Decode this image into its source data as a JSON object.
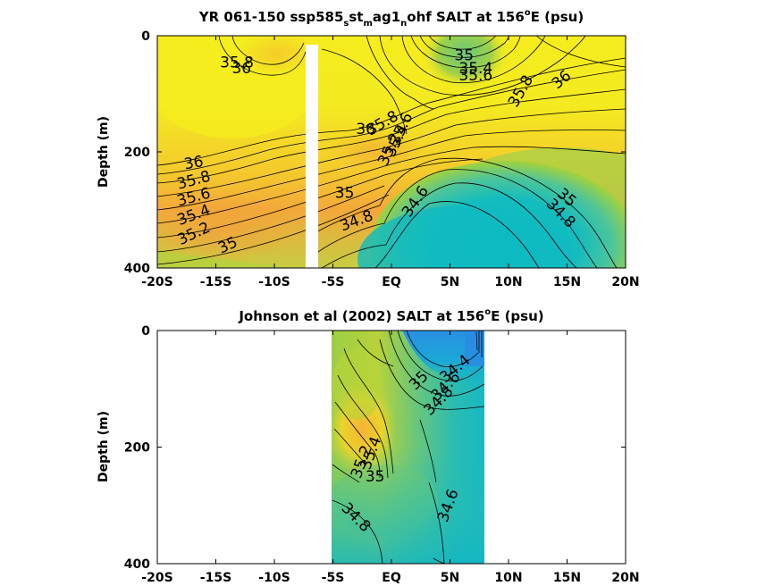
{
  "chart_data": [
    {
      "type": "heatmap",
      "title_parts": [
        "YR 061-150 ssp585",
        "s",
        "st",
        "m",
        "ag1",
        "n",
        "ohf SALT at 156",
        "o",
        "E (psu)"
      ],
      "ylabel": "Depth (m)",
      "xlim": [
        -20,
        20
      ],
      "ylim": [
        0,
        400
      ],
      "y_reversed": true,
      "x_ticks": [
        -20,
        -15,
        -10,
        -5,
        0,
        5,
        10,
        15,
        20
      ],
      "x_tick_labels": [
        "-20S",
        "-15S",
        "-10S",
        "-5S",
        "EQ",
        "5N",
        "10N",
        "15N",
        "20N"
      ],
      "y_ticks": [
        0,
        200,
        400
      ],
      "y_tick_labels": [
        "0",
        "200",
        "400"
      ],
      "data_gap_lat": [
        -7.4,
        -6.3
      ],
      "colormap": [
        "#00b9c5",
        "#49c49a",
        "#a4d23c",
        "#f5e61e",
        "#f7a53b",
        "#e07a31"
      ],
      "contour_labels": [
        {
          "text": "35.8",
          "lat": -13.2,
          "depth": 45,
          "rot": 0
        },
        {
          "text": "36",
          "lat": -12.8,
          "depth": 55,
          "rot": 0
        },
        {
          "text": "35",
          "lat": 6.2,
          "depth": 33,
          "rot": 0
        },
        {
          "text": "35.4",
          "lat": 7.2,
          "depth": 55,
          "rot": 0
        },
        {
          "text": "35.6",
          "lat": 7.2,
          "depth": 68,
          "rot": 0
        },
        {
          "text": "35.8",
          "lat": 11.0,
          "depth": 95,
          "rot": -60
        },
        {
          "text": "36",
          "lat": 14.5,
          "depth": 75,
          "rot": -40
        },
        {
          "text": "36",
          "lat": -2.2,
          "depth": 160,
          "rot": 0
        },
        {
          "text": "35.8",
          "lat": -0.8,
          "depth": 150,
          "rot": -30
        },
        {
          "text": "35.6",
          "lat": 0.8,
          "depth": 160,
          "rot": -65
        },
        {
          "text": "35.4",
          "lat": 0.4,
          "depth": 180,
          "rot": -65
        },
        {
          "text": "35.2",
          "lat": -0.2,
          "depth": 195,
          "rot": -65
        },
        {
          "text": "36",
          "lat": -16.9,
          "depth": 218,
          "rot": -10
        },
        {
          "text": "35.8",
          "lat": -16.9,
          "depth": 248,
          "rot": -15
        },
        {
          "text": "35.6",
          "lat": -16.9,
          "depth": 277,
          "rot": -15
        },
        {
          "text": "35.4",
          "lat": -16.9,
          "depth": 308,
          "rot": -20
        },
        {
          "text": "35.2",
          "lat": -16.9,
          "depth": 340,
          "rot": -25
        },
        {
          "text": "35",
          "lat": -14.0,
          "depth": 360,
          "rot": -25
        },
        {
          "text": "35",
          "lat": -4.0,
          "depth": 270,
          "rot": 0
        },
        {
          "text": "34.8",
          "lat": -3.0,
          "depth": 318,
          "rot": -20
        },
        {
          "text": "34.6",
          "lat": 2.0,
          "depth": 285,
          "rot": -55
        },
        {
          "text": "35",
          "lat": 15.0,
          "depth": 278,
          "rot": 40
        },
        {
          "text": "34.8",
          "lat": 14.5,
          "depth": 305,
          "rot": 45
        }
      ]
    },
    {
      "type": "heatmap",
      "title_parts": [
        "Johnson et al (2002) SALT at 156",
        "o",
        "E (psu)"
      ],
      "ylabel": "Depth (m)",
      "xlim": [
        -20,
        20
      ],
      "ylim": [
        0,
        400
      ],
      "y_reversed": true,
      "x_ticks": [
        -20,
        -15,
        -10,
        -5,
        0,
        5,
        10,
        15,
        20
      ],
      "x_tick_labels": [
        "-20S",
        "-15S",
        "-10S",
        "-5S",
        "EQ",
        "5N",
        "10N",
        "15N",
        "20N"
      ],
      "y_ticks": [
        0,
        200,
        400
      ],
      "y_tick_labels": [
        "0",
        "200",
        "400"
      ],
      "data_range_lat": [
        -5,
        8
      ],
      "colormap": [
        "#2c95e0",
        "#00b9c5",
        "#49c49a",
        "#a4d23c",
        "#f5e61e",
        "#f7a53b"
      ],
      "contour_labels": [
        {
          "text": "34.4",
          "lat": 5.4,
          "depth": 65,
          "rot": -40
        },
        {
          "text": "34.6",
          "lat": 4.6,
          "depth": 95,
          "rot": -45
        },
        {
          "text": "34.8",
          "lat": 4.0,
          "depth": 120,
          "rot": -45
        },
        {
          "text": "35",
          "lat": 2.3,
          "depth": 85,
          "rot": -45
        },
        {
          "text": "35.4",
          "lat": -1.8,
          "depth": 210,
          "rot": -70
        },
        {
          "text": "35.2",
          "lat": -2.6,
          "depth": 225,
          "rot": -70
        },
        {
          "text": "35",
          "lat": -1.4,
          "depth": 250,
          "rot": 0
        },
        {
          "text": "34.8",
          "lat": -3.0,
          "depth": 320,
          "rot": 45
        },
        {
          "text": "34.6",
          "lat": 4.8,
          "depth": 300,
          "rot": -70
        }
      ]
    }
  ]
}
